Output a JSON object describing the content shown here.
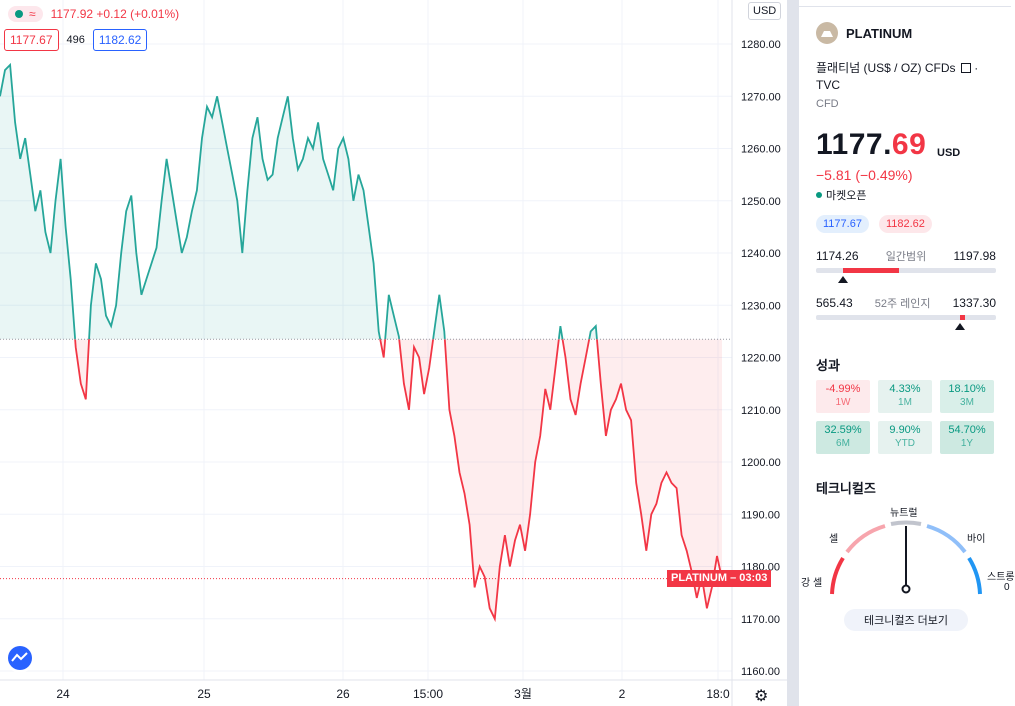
{
  "colors": {
    "up": "#26a69a",
    "down": "#f23645",
    "accent_blue": "#2962ff",
    "grid": "#f0f3fa"
  },
  "chart_header": {
    "ohlc_text": "1177.92  +0.12 (+0.01%)",
    "bid": "1177.67",
    "spread": "496",
    "ask": "1182.62",
    "currency": "USD",
    "price_label_symbol": "PLATINUM",
    "price_label_time": "03:03"
  },
  "chart_data": {
    "type": "area",
    "baseline": 1223.5,
    "current_price": 1177.67,
    "ylim": [
      1156,
      1286
    ],
    "y_ticks": [
      "1280.00",
      "1270.00",
      "1260.00",
      "1250.00",
      "1240.00",
      "1230.00",
      "1220.00",
      "1210.00",
      "1200.00",
      "1190.00",
      "1180.00",
      "1170.00",
      "1160.00"
    ],
    "x_ticks": [
      "24",
      "25",
      "26",
      "15:00",
      "3월",
      "2",
      "18:0"
    ],
    "grid": true,
    "series": [
      {
        "values": [
          1270,
          1275,
          1276,
          1265,
          1258,
          1262,
          1255,
          1248,
          1252,
          1244,
          1240,
          1250,
          1258,
          1245,
          1235,
          1222,
          1215,
          1212,
          1230,
          1238,
          1235,
          1228,
          1226,
          1230,
          1240,
          1248,
          1251,
          1240,
          1232,
          1235,
          1238,
          1241,
          1250,
          1258,
          1252,
          1246,
          1240,
          1243,
          1248,
          1252,
          1262,
          1268,
          1266,
          1270,
          1265,
          1260,
          1255,
          1250,
          1240,
          1252,
          1262,
          1266,
          1258,
          1254,
          1255,
          1262,
          1266,
          1270,
          1262,
          1256,
          1258,
          1262,
          1260,
          1265,
          1258,
          1255,
          1252,
          1260,
          1262,
          1258,
          1250,
          1255,
          1252,
          1245,
          1238,
          1225,
          1220,
          1232,
          1228,
          1224,
          1215,
          1210,
          1222,
          1220,
          1213,
          1218,
          1225,
          1232,
          1225,
          1210,
          1205,
          1198,
          1194,
          1188,
          1176,
          1180,
          1178,
          1172,
          1170,
          1180,
          1186,
          1180,
          1185,
          1188,
          1183,
          1190,
          1200,
          1205,
          1214,
          1210,
          1218,
          1226,
          1220,
          1212,
          1209,
          1215,
          1220,
          1225,
          1226,
          1215,
          1205,
          1210,
          1212,
          1215,
          1210,
          1208,
          1196,
          1190,
          1183,
          1190,
          1192,
          1196,
          1198,
          1196,
          1195,
          1186,
          1183,
          1179,
          1174,
          1178,
          1172,
          1176,
          1182,
          1177.67
        ]
      }
    ]
  },
  "symbol": {
    "name": "PLATINUM",
    "description": "플래티넘 (US$ / OZ) CFDs",
    "exchange": "TVC",
    "category": "CFD",
    "price_int": "1177.",
    "price_dec": "69",
    "currency": "USD",
    "change": "−5.81 (−0.49%)",
    "market_status": "마켓오픈",
    "bid": "1177.67",
    "ask": "1182.62"
  },
  "day_range": {
    "label": "일간범위",
    "low": "1174.26",
    "high": "1197.98",
    "fill_start": 0.15,
    "fill_end": 0.46,
    "marker": 0.15
  },
  "year_range": {
    "label": "52주 레인지",
    "low": "565.43",
    "high": "1337.30",
    "fill_start": 0.8,
    "fill_end": 0.83,
    "marker": 0.8
  },
  "performance": {
    "title": "성과",
    "items": [
      {
        "value": "-4.99%",
        "label": "1W",
        "tone": "neg"
      },
      {
        "value": "4.33%",
        "label": "1M",
        "tone": "pos1"
      },
      {
        "value": "18.10%",
        "label": "3M",
        "tone": "pos2"
      },
      {
        "value": "32.59%",
        "label": "6M",
        "tone": "pos3"
      },
      {
        "value": "9.90%",
        "label": "YTD",
        "tone": "pos1"
      },
      {
        "value": "54.70%",
        "label": "1Y",
        "tone": "pos3"
      }
    ]
  },
  "technicals": {
    "title": "테크니컬즈",
    "labels": {
      "strong_sell": "강 셀",
      "sell": "셀",
      "neutral": "뉴트럴",
      "buy": "바이",
      "strong_buy": "스트롱"
    },
    "tail_digit": "0",
    "needle": "neutral",
    "more_button": "테크니컬즈 더보기"
  }
}
